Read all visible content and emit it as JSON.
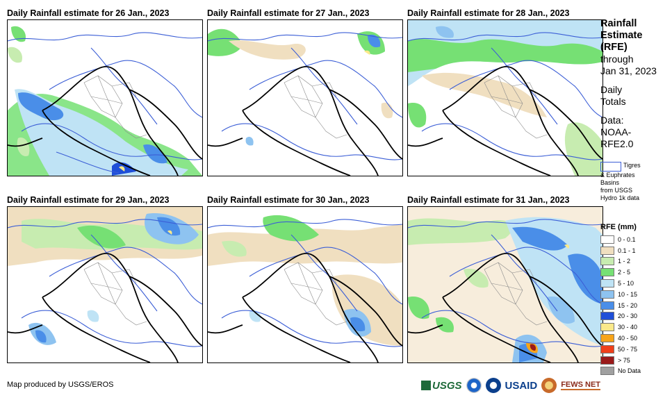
{
  "panels": [
    {
      "title": "Daily Rainfall estimate for 26 Jan., 2023"
    },
    {
      "title": "Daily Rainfall estimate for 27 Jan., 2023"
    },
    {
      "title": "Daily Rainfall estimate for 28 Jan., 2023"
    },
    {
      "title": "Daily Rainfall estimate for 29 Jan., 2023"
    },
    {
      "title": "Daily Rainfall estimate for 30 Jan., 2023"
    },
    {
      "title": "Daily Rainfall estimate for 31 Jan., 2023"
    }
  ],
  "side": {
    "title_lines": [
      "Rainfall",
      "Estimate",
      "(RFE)"
    ],
    "period_lines": [
      "through",
      "Jan 31, 2023"
    ],
    "totals_lines": [
      "Daily",
      "Totals"
    ],
    "data_lines": [
      "Data:",
      "NOAA-",
      "RFE2.0"
    ]
  },
  "basin_key": {
    "lines": [
      "Tigres",
      "& Euphrates",
      "Basins",
      "from USGS",
      "Hydro 1k data"
    ]
  },
  "legend": {
    "title": "RFE (mm)",
    "items": [
      {
        "label": "0 - 0.1",
        "color": "#ffffff"
      },
      {
        "label": "0.1 - 1",
        "color": "#f0dfc0"
      },
      {
        "label": "1 - 2",
        "color": "#c7ecb0"
      },
      {
        "label": "2 - 5",
        "color": "#76e074"
      },
      {
        "label": "5 - 10",
        "color": "#bfe3f5"
      },
      {
        "label": "10 - 15",
        "color": "#8ec3f0"
      },
      {
        "label": "15 - 20",
        "color": "#4a8ee8"
      },
      {
        "label": "20 - 30",
        "color": "#1f4fd8"
      },
      {
        "label": "30 - 40",
        "color": "#fbe98a"
      },
      {
        "label": "40 - 50",
        "color": "#f7a41a"
      },
      {
        "label": "50 - 75",
        "color": "#f0401a"
      },
      {
        "label": "> 75",
        "color": "#9a1a1a"
      },
      {
        "label": "No Data",
        "color": "#a0a0a0"
      }
    ]
  },
  "credit": "Map produced by USGS/EROS",
  "logos": {
    "usgs": "USGS",
    "usaid": "USAID",
    "fews": "FEWS NET"
  }
}
